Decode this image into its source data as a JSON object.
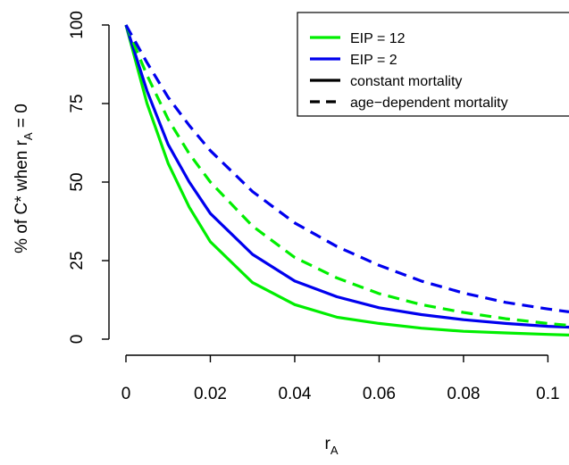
{
  "chart_data": {
    "type": "line",
    "xlabel": "r",
    "xlabel_sub": "A",
    "ylabel_main": "% of C* when r",
    "ylabel_sub": "A",
    "ylabel_tail": " = 0",
    "xlim": [
      0,
      0.105
    ],
    "ylim": [
      0,
      100
    ],
    "xticks": [
      {
        "value": 0,
        "label": "0"
      },
      {
        "value": 0.02,
        "label": "0.02"
      },
      {
        "value": 0.04,
        "label": "0.04"
      },
      {
        "value": 0.06,
        "label": "0.06"
      },
      {
        "value": 0.08,
        "label": "0.08"
      },
      {
        "value": 0.1,
        "label": "0.1"
      }
    ],
    "yticks": [
      {
        "value": 0,
        "label": "0"
      },
      {
        "value": 25,
        "label": "25"
      },
      {
        "value": 50,
        "label": "50"
      },
      {
        "value": 75,
        "label": "75"
      },
      {
        "value": 100,
        "label": "100"
      }
    ],
    "grid": false,
    "legend_position": "top-right",
    "legend": [
      {
        "label": "EIP = 12",
        "color": "#00ee00",
        "dash": "solid"
      },
      {
        "label": "EIP = 2",
        "color": "#0000ee",
        "dash": "solid"
      },
      {
        "label": "constant mortality",
        "color": "#000000",
        "dash": "solid"
      },
      {
        "label": "age−dependent mortality",
        "color": "#000000",
        "dash": "dashed"
      }
    ],
    "series": [
      {
        "name": "EIP = 12",
        "mortality": "constant mortality",
        "color": "#00ee00",
        "dash": "solid",
        "x": [
          0,
          0.005,
          0.01,
          0.015,
          0.02,
          0.03,
          0.04,
          0.05,
          0.06,
          0.07,
          0.08,
          0.09,
          0.1,
          0.105
        ],
        "y": [
          100,
          75,
          56,
          42,
          31,
          18,
          11,
          7,
          5,
          3.5,
          2.5,
          2,
          1.5,
          1.3
        ]
      },
      {
        "name": "EIP = 2",
        "mortality": "constant mortality",
        "color": "#0000ee",
        "dash": "solid",
        "x": [
          0,
          0.005,
          0.01,
          0.015,
          0.02,
          0.03,
          0.04,
          0.05,
          0.06,
          0.07,
          0.08,
          0.09,
          0.1,
          0.105
        ],
        "y": [
          100,
          79,
          62,
          50,
          40,
          27,
          18.5,
          13.5,
          10,
          7.8,
          6.2,
          5,
          4.1,
          3.8
        ]
      },
      {
        "name": "EIP = 12",
        "mortality": "age−dependent mortality",
        "color": "#00ee00",
        "dash": "dashed",
        "x": [
          0,
          0.005,
          0.01,
          0.015,
          0.02,
          0.03,
          0.04,
          0.05,
          0.06,
          0.07,
          0.08,
          0.09,
          0.1,
          0.105
        ],
        "y": [
          100,
          84,
          70,
          59,
          50,
          36,
          26,
          19.5,
          14.5,
          11,
          8.5,
          6.5,
          5,
          4.4
        ]
      },
      {
        "name": "EIP = 2",
        "mortality": "age−dependent mortality",
        "color": "#0000ee",
        "dash": "dashed",
        "x": [
          0,
          0.005,
          0.01,
          0.015,
          0.02,
          0.03,
          0.04,
          0.05,
          0.06,
          0.07,
          0.08,
          0.09,
          0.1,
          0.105
        ],
        "y": [
          100,
          88,
          77,
          68,
          60,
          47,
          37,
          29.5,
          23.5,
          18.5,
          14.7,
          11.7,
          9.6,
          8.7
        ]
      }
    ]
  }
}
